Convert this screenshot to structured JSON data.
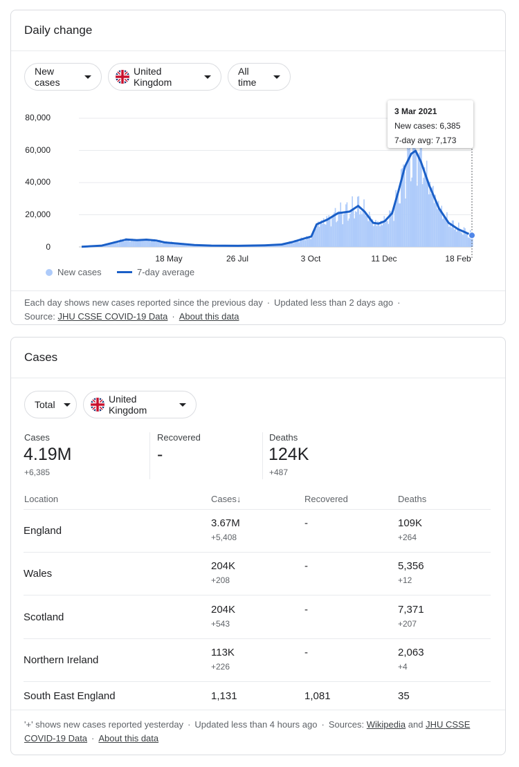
{
  "daily": {
    "title": "Daily change",
    "filters": {
      "metric": "New cases",
      "country": "United Kingdom",
      "range": "All time"
    },
    "chart_data": {
      "type": "bar+line",
      "y_ticks": [
        "80,000",
        "60,000",
        "40,000",
        "20,000",
        "0"
      ],
      "x_ticks": [
        "18 May",
        "26 Jul",
        "3 Oct",
        "11 Dec",
        "18 Feb"
      ],
      "ylim": [
        0,
        80000
      ],
      "series": [
        {
          "name": "New cases",
          "kind": "bar",
          "color": "#aecbfa"
        },
        {
          "name": "7-day average",
          "kind": "line",
          "color": "#1a5fc7"
        }
      ],
      "seven_day_avg": [
        {
          "x": "2020-03-01",
          "y": 100
        },
        {
          "x": "2020-03-20",
          "y": 800
        },
        {
          "x": "2020-04-05",
          "y": 3500
        },
        {
          "x": "2020-04-12",
          "y": 4600
        },
        {
          "x": "2020-04-22",
          "y": 4200
        },
        {
          "x": "2020-05-01",
          "y": 4500
        },
        {
          "x": "2020-05-10",
          "y": 4000
        },
        {
          "x": "2020-05-18",
          "y": 2800
        },
        {
          "x": "2020-06-01",
          "y": 2000
        },
        {
          "x": "2020-06-15",
          "y": 1200
        },
        {
          "x": "2020-07-01",
          "y": 800
        },
        {
          "x": "2020-07-26",
          "y": 700
        },
        {
          "x": "2020-08-20",
          "y": 1000
        },
        {
          "x": "2020-09-05",
          "y": 1500
        },
        {
          "x": "2020-09-15",
          "y": 3000
        },
        {
          "x": "2020-09-25",
          "y": 5000
        },
        {
          "x": "2020-10-03",
          "y": 6500
        },
        {
          "x": "2020-10-08",
          "y": 14000
        },
        {
          "x": "2020-10-18",
          "y": 17000
        },
        {
          "x": "2020-10-28",
          "y": 21000
        },
        {
          "x": "2020-11-08",
          "y": 22000
        },
        {
          "x": "2020-11-16",
          "y": 25500
        },
        {
          "x": "2020-11-22",
          "y": 22000
        },
        {
          "x": "2020-11-30",
          "y": 15000
        },
        {
          "x": "2020-12-05",
          "y": 14500
        },
        {
          "x": "2020-12-11",
          "y": 16000
        },
        {
          "x": "2020-12-18",
          "y": 21000
        },
        {
          "x": "2020-12-24",
          "y": 35000
        },
        {
          "x": "2020-12-30",
          "y": 50000
        },
        {
          "x": "2021-01-05",
          "y": 58000
        },
        {
          "x": "2021-01-09",
          "y": 59800
        },
        {
          "x": "2021-01-14",
          "y": 53000
        },
        {
          "x": "2021-01-22",
          "y": 38000
        },
        {
          "x": "2021-01-31",
          "y": 24000
        },
        {
          "x": "2021-02-09",
          "y": 15000
        },
        {
          "x": "2021-02-18",
          "y": 11000
        },
        {
          "x": "2021-02-25",
          "y": 9000
        },
        {
          "x": "2021-03-03",
          "y": 7173
        }
      ],
      "tooltip": {
        "date": "3 Mar 2021",
        "new_cases": "New cases: 6,385",
        "avg": "7-day avg: 7,173"
      }
    },
    "footnote": {
      "text1": "Each day shows new cases reported since the previous day",
      "sep": "·",
      "text2": "Updated less than 2 days ago",
      "source_label": "Source:",
      "source_link": "JHU CSSE COVID-19 Data",
      "about_link": "About this data"
    }
  },
  "cases": {
    "title": "Cases",
    "filters": {
      "scope": "Total",
      "country": "United Kingdom"
    },
    "summary": {
      "cases": {
        "label": "Cases",
        "value": "4.19M",
        "delta": "+6,385"
      },
      "recovered": {
        "label": "Recovered",
        "value": "-"
      },
      "deaths": {
        "label": "Deaths",
        "value": "124K",
        "delta": "+487"
      }
    },
    "table": {
      "headers": {
        "location": "Location",
        "cases": "Cases",
        "recovered": "Recovered",
        "deaths": "Deaths"
      },
      "rows": [
        {
          "location": "England",
          "cases": "3.67M",
          "cases_delta": "+5,408",
          "recovered": "-",
          "deaths": "109K",
          "deaths_delta": "+264"
        },
        {
          "location": "Wales",
          "cases": "204K",
          "cases_delta": "+208",
          "recovered": "-",
          "deaths": "5,356",
          "deaths_delta": "+12"
        },
        {
          "location": "Scotland",
          "cases": "204K",
          "cases_delta": "+543",
          "recovered": "-",
          "deaths": "7,371",
          "deaths_delta": "+207"
        },
        {
          "location": "Northern Ireland",
          "cases": "113K",
          "cases_delta": "+226",
          "recovered": "-",
          "deaths": "2,063",
          "deaths_delta": "+4"
        },
        {
          "location": "South East England",
          "cases": "1,131",
          "recovered": "1,081",
          "deaths": "35"
        }
      ]
    },
    "footnote": {
      "text1": "'+' shows new cases reported yesterday",
      "text2": "Updated less than 4 hours ago",
      "sources_label": "Sources:",
      "link_wiki": "Wikipedia",
      "and": "and",
      "link_jhu1": "JHU CSSE",
      "link_jhu2": "COVID-19 Data",
      "about_link": "About this data"
    }
  }
}
